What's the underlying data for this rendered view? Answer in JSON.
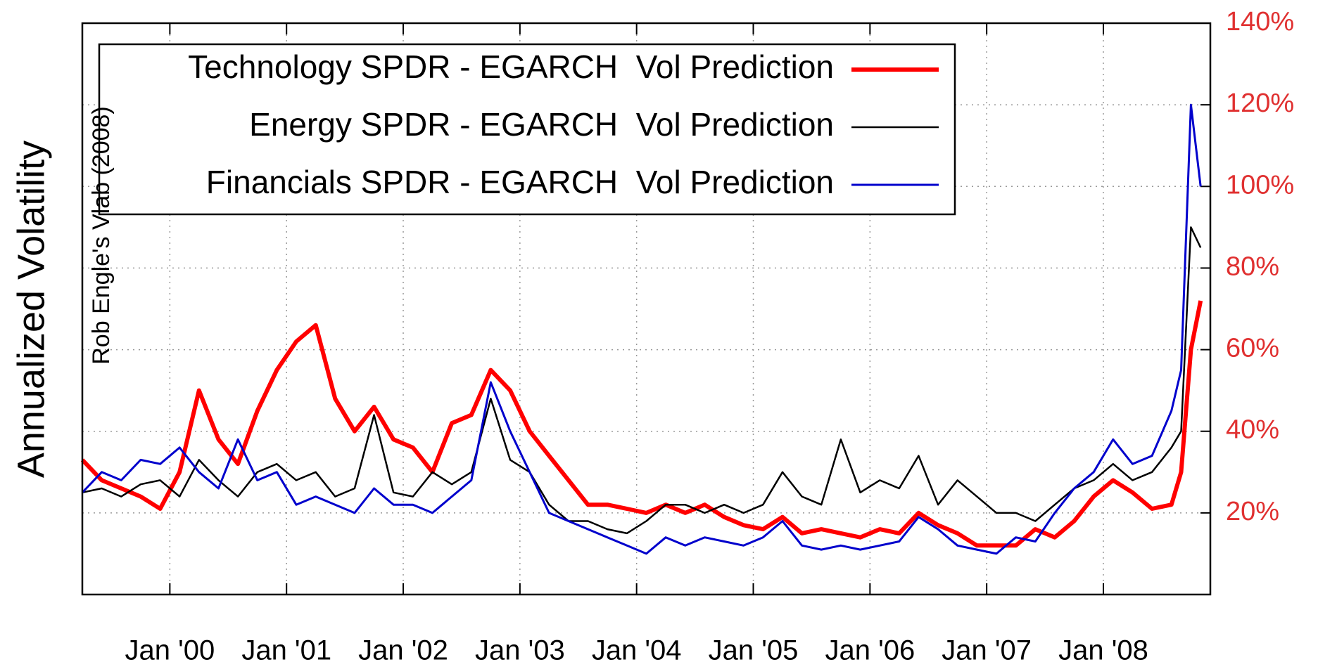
{
  "chart_data": {
    "type": "line",
    "y_label": "Annualized Volatility",
    "watermark": "Rob Engle's Vlab (2008)",
    "x": [
      "1999-04",
      "1999-06",
      "1999-08",
      "1999-10",
      "1999-12",
      "2000-02",
      "2000-04",
      "2000-06",
      "2000-08",
      "2000-10",
      "2000-12",
      "2001-02",
      "2001-04",
      "2001-06",
      "2001-08",
      "2001-10",
      "2001-12",
      "2002-02",
      "2002-04",
      "2002-06",
      "2002-08",
      "2002-10",
      "2002-12",
      "2003-02",
      "2003-04",
      "2003-06",
      "2003-08",
      "2003-10",
      "2003-12",
      "2004-02",
      "2004-04",
      "2004-06",
      "2004-08",
      "2004-10",
      "2004-12",
      "2005-02",
      "2005-04",
      "2005-06",
      "2005-08",
      "2005-10",
      "2005-12",
      "2006-02",
      "2006-04",
      "2006-06",
      "2006-08",
      "2006-10",
      "2006-12",
      "2007-02",
      "2007-04",
      "2007-06",
      "2007-08",
      "2007-10",
      "2007-12",
      "2008-02",
      "2008-04",
      "2008-06",
      "2008-08",
      "2008-09",
      "2008-10",
      "2008-11"
    ],
    "series": [
      {
        "name": "Technology SPDR - EGARCH  Vol Prediction",
        "color": "#ff0000",
        "values": [
          33,
          28,
          26,
          24,
          21,
          30,
          50,
          38,
          32,
          45,
          55,
          62,
          66,
          48,
          40,
          46,
          38,
          36,
          30,
          42,
          44,
          55,
          50,
          40,
          34,
          28,
          22,
          22,
          21,
          20,
          22,
          20,
          22,
          19,
          17,
          16,
          19,
          15,
          16,
          15,
          14,
          16,
          15,
          20,
          17,
          15,
          12,
          12,
          12,
          16,
          14,
          18,
          24,
          28,
          25,
          21,
          22,
          30,
          60,
          72
        ]
      },
      {
        "name": "Energy SPDR - EGARCH  Vol Prediction",
        "color": "#000000",
        "values": [
          25,
          26,
          24,
          27,
          28,
          24,
          33,
          28,
          24,
          30,
          32,
          28,
          30,
          24,
          26,
          44,
          25,
          24,
          30,
          27,
          30,
          48,
          33,
          30,
          22,
          18,
          18,
          16,
          15,
          18,
          22,
          22,
          20,
          22,
          20,
          22,
          30,
          24,
          22,
          38,
          25,
          28,
          26,
          34,
          22,
          28,
          24,
          20,
          20,
          18,
          22,
          26,
          28,
          32,
          28,
          30,
          36,
          40,
          90,
          85
        ]
      },
      {
        "name": "Financials SPDR - EGARCH  Vol Prediction",
        "color": "#0000cc",
        "values": [
          25,
          30,
          28,
          33,
          32,
          36,
          30,
          26,
          38,
          28,
          30,
          22,
          24,
          22,
          20,
          26,
          22,
          22,
          20,
          24,
          28,
          52,
          40,
          30,
          20,
          18,
          16,
          14,
          12,
          10,
          14,
          12,
          14,
          13,
          12,
          14,
          18,
          12,
          11,
          12,
          11,
          12,
          13,
          19,
          16,
          12,
          11,
          10,
          14,
          13,
          20,
          26,
          30,
          38,
          32,
          34,
          45,
          55,
          120,
          100
        ]
      }
    ],
    "xlim": [
      "1999-04",
      "2008-12"
    ],
    "xticks": [
      {
        "value": "2000-01",
        "label": "Jan '00"
      },
      {
        "value": "2001-01",
        "label": "Jan '01"
      },
      {
        "value": "2002-01",
        "label": "Jan '02"
      },
      {
        "value": "2003-01",
        "label": "Jan '03"
      },
      {
        "value": "2004-01",
        "label": "Jan '04"
      },
      {
        "value": "2005-01",
        "label": "Jan '05"
      },
      {
        "value": "2006-01",
        "label": "Jan '06"
      },
      {
        "value": "2007-01",
        "label": "Jan '07"
      },
      {
        "value": "2008-01",
        "label": "Jan '08"
      }
    ],
    "ylim": [
      0,
      140
    ],
    "yticks": [
      {
        "value": 20,
        "label": "20%"
      },
      {
        "value": 40,
        "label": "40%"
      },
      {
        "value": 60,
        "label": "60%"
      },
      {
        "value": 80,
        "label": "80%"
      },
      {
        "value": 100,
        "label": "100%"
      },
      {
        "value": 120,
        "label": "120%"
      },
      {
        "value": 140,
        "label": "140%"
      }
    ],
    "ytick_color": "#e03030",
    "grid": true,
    "legend": "top-left"
  }
}
